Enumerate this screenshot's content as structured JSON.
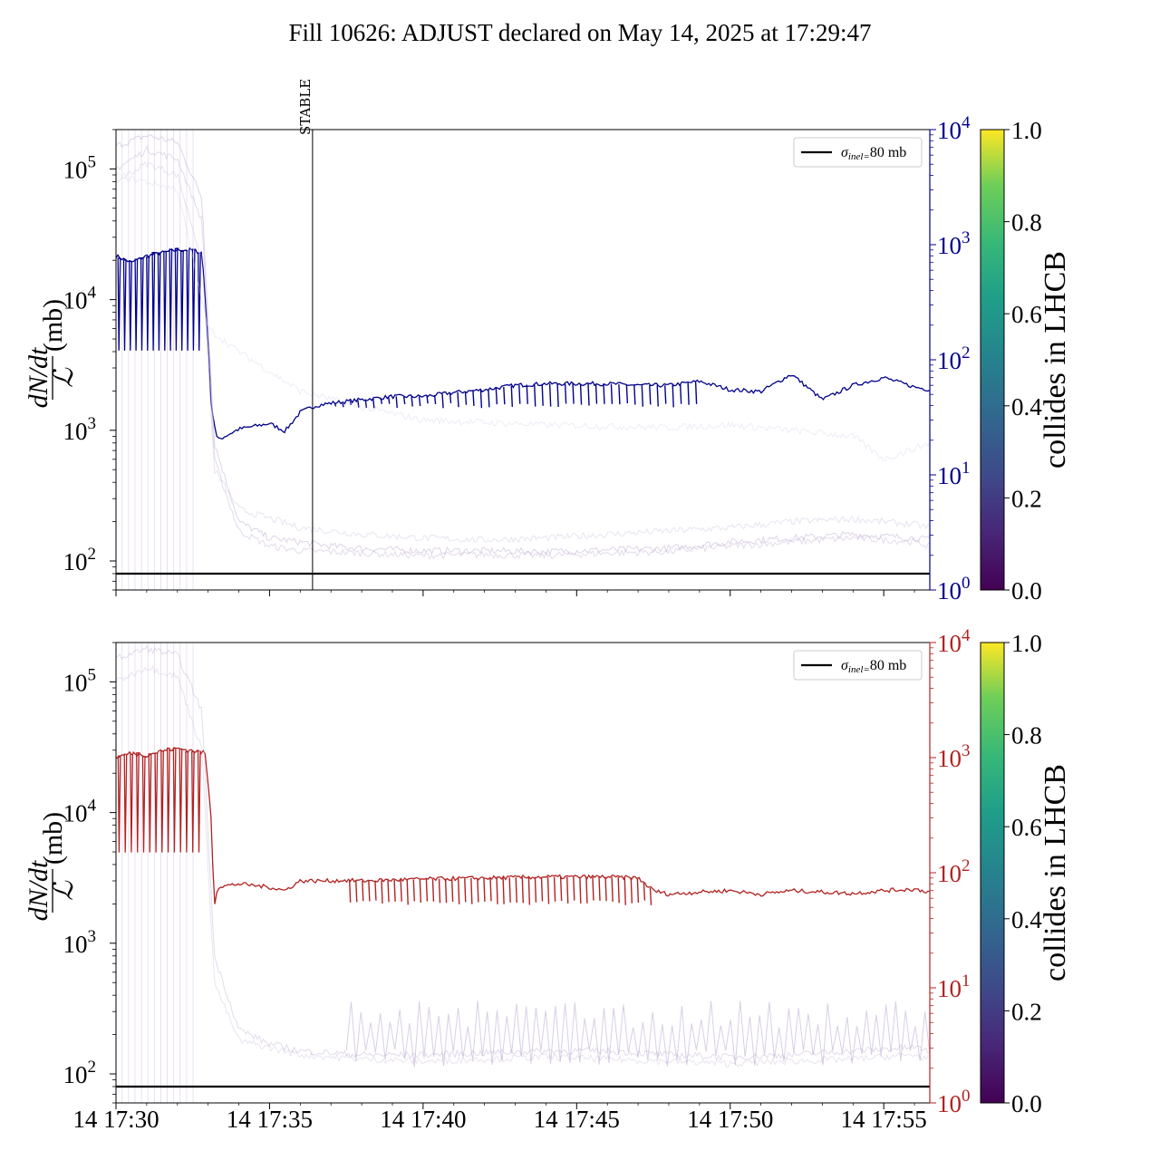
{
  "title": "Fill 10626: ADJUST declared on May 14, 2025 at 17:29:47",
  "colors": {
    "blue_series": "#00008b",
    "red_series": "#b22222",
    "faint_series": "#c8b8d8",
    "reference_line": "#000000"
  },
  "chart_data": [
    {
      "type": "line",
      "panel": "top",
      "title": "",
      "xlabel": "",
      "ylabel_num": "dN/dt",
      "ylabel_den": "ℒ",
      "ylabel_unit": "(mb)",
      "yscale": "log",
      "ylim": [
        60,
        200000
      ],
      "xlim_minutes": [
        0,
        26.5
      ],
      "x_start_label": "14 17:30",
      "x_ticks": [
        {
          "minute": 0,
          "label": "14 17:30"
        },
        {
          "minute": 5,
          "label": "14 17:35"
        },
        {
          "minute": 10,
          "label": "14 17:40"
        },
        {
          "minute": 15,
          "label": "14 17:45"
        },
        {
          "minute": 20,
          "label": "14 17:50"
        },
        {
          "minute": 25,
          "label": "14 17:55"
        }
      ],
      "y_ticks": [
        {
          "value": 100,
          "base": "10",
          "exp": "2"
        },
        {
          "value": 1000,
          "base": "10",
          "exp": "3"
        },
        {
          "value": 10000,
          "base": "10",
          "exp": "4"
        },
        {
          "value": 100000,
          "base": "10",
          "exp": "5"
        }
      ],
      "right_axis": {
        "scale": "log",
        "ylim": [
          1,
          10000
        ],
        "color": "#00008b",
        "ticks": [
          {
            "value": 1,
            "base": "10",
            "exp": "0"
          },
          {
            "value": 10,
            "base": "10",
            "exp": "1"
          },
          {
            "value": 100,
            "base": "10",
            "exp": "2"
          },
          {
            "value": 1000,
            "base": "10",
            "exp": "3"
          },
          {
            "value": 10000,
            "base": "10",
            "exp": "4"
          }
        ]
      },
      "reference_line": {
        "value": 80,
        "label": "σinel=80 mb"
      },
      "annotation": {
        "text": "STABLE",
        "minute": 6.4
      },
      "legend": "top-right",
      "series": [
        {
          "axis": "right",
          "color": "#00008b",
          "x": [
            0,
            0.5,
            1,
            1.5,
            2,
            2.5,
            2.8,
            3.0,
            3.1,
            3.3,
            4,
            5,
            5.5,
            6,
            6.5,
            7,
            8,
            9,
            10,
            11,
            12,
            13,
            14,
            15,
            16,
            17,
            18,
            19,
            20,
            21,
            22,
            23,
            24,
            25,
            26,
            26.5
          ],
          "y": [
            800,
            700,
            800,
            850,
            900,
            900,
            850,
            150,
            40,
            20,
            25,
            28,
            24,
            35,
            40,
            42,
            45,
            48,
            48,
            52,
            55,
            60,
            62,
            62,
            62,
            60,
            60,
            65,
            55,
            53,
            75,
            45,
            60,
            70,
            58,
            55
          ],
          "dips": {
            "from": 0,
            "to": 2.8,
            "low": 120,
            "count": 15
          }
        },
        {
          "axis": "right",
          "color": "#00008b",
          "dips": {
            "from": 7.0,
            "to": 19.0,
            "low": 40,
            "count": 48
          }
        },
        {
          "axis": "left",
          "color": "#c8b8d8",
          "opacity": 0.6,
          "x": [
            0,
            1,
            2,
            2.8,
            3.2,
            4,
            5,
            6,
            7,
            8,
            10,
            12,
            14,
            16,
            18,
            20,
            22,
            24,
            26,
            26.5
          ],
          "y": [
            150000,
            180000,
            160000,
            60000,
            800,
            200,
            150,
            140,
            130,
            125,
            120,
            120,
            118,
            122,
            125,
            140,
            150,
            160,
            150,
            145
          ]
        },
        {
          "axis": "left",
          "color": "#c8b8d8",
          "opacity": 0.5,
          "x": [
            0,
            1,
            2,
            2.8,
            3.2,
            4,
            5,
            6,
            8,
            10,
            12,
            14,
            16,
            18,
            20,
            22,
            24,
            26,
            26.5
          ],
          "y": [
            100000,
            140000,
            120000,
            40000,
            600,
            170,
            130,
            120,
            115,
            110,
            112,
            110,
            115,
            118,
            130,
            140,
            150,
            140,
            130
          ]
        },
        {
          "axis": "left",
          "color": "#c8b8d8",
          "opacity": 0.4,
          "x": [
            0,
            1,
            2,
            2.8,
            3.2,
            4,
            6,
            8,
            10,
            12,
            14,
            16,
            18,
            20,
            22,
            24,
            26,
            26.5
          ],
          "y": [
            80000,
            110000,
            90000,
            20000,
            500,
            250,
            180,
            160,
            150,
            145,
            150,
            160,
            170,
            180,
            200,
            210,
            190,
            180
          ]
        },
        {
          "axis": "left",
          "color": "#d8d0e8",
          "opacity": 0.4,
          "x": [
            0,
            2,
            3,
            4,
            6,
            8,
            10,
            14,
            18,
            20,
            22,
            24,
            25,
            26.5
          ],
          "y": [
            90000,
            70000,
            6000,
            4000,
            2000,
            1500,
            1200,
            1100,
            1050,
            1100,
            1000,
            900,
            600,
            800
          ]
        }
      ]
    },
    {
      "type": "line",
      "panel": "bottom",
      "title": "",
      "xlabel": "",
      "ylabel_num": "dN/dt",
      "ylabel_den": "ℒ",
      "ylabel_unit": "(mb)",
      "yscale": "log",
      "ylim": [
        60,
        200000
      ],
      "xlim_minutes": [
        0,
        26.5
      ],
      "x_ticks": [
        {
          "minute": 0,
          "label": "14 17:30"
        },
        {
          "minute": 5,
          "label": "14 17:35"
        },
        {
          "minute": 10,
          "label": "14 17:40"
        },
        {
          "minute": 15,
          "label": "14 17:45"
        },
        {
          "minute": 20,
          "label": "14 17:50"
        },
        {
          "minute": 25,
          "label": "14 17:55"
        }
      ],
      "y_ticks": [
        {
          "value": 100,
          "base": "10",
          "exp": "2"
        },
        {
          "value": 1000,
          "base": "10",
          "exp": "3"
        },
        {
          "value": 10000,
          "base": "10",
          "exp": "4"
        },
        {
          "value": 100000,
          "base": "10",
          "exp": "5"
        }
      ],
      "right_axis": {
        "scale": "log",
        "ylim": [
          1,
          10000
        ],
        "color": "#b22222",
        "ticks": [
          {
            "value": 1,
            "base": "10",
            "exp": "0"
          },
          {
            "value": 10,
            "base": "10",
            "exp": "1"
          },
          {
            "value": 100,
            "base": "10",
            "exp": "2"
          },
          {
            "value": 1000,
            "base": "10",
            "exp": "3"
          },
          {
            "value": 10000,
            "base": "10",
            "exp": "4"
          }
        ]
      },
      "reference_line": {
        "value": 80,
        "label": "σinel=80 mb"
      },
      "legend": "top-right",
      "series": [
        {
          "axis": "right",
          "color": "#b22222",
          "x": [
            0,
            0.5,
            1,
            1.5,
            2,
            2.5,
            2.9,
            3.1,
            3.2,
            3.3,
            4,
            5,
            5.5,
            6,
            7,
            7.5,
            8,
            10,
            12,
            14,
            16,
            17,
            17.5,
            18,
            19,
            20,
            21,
            22,
            23,
            24,
            25,
            26,
            26.5
          ],
          "y": [
            1000,
            1100,
            1050,
            1150,
            1200,
            1150,
            1100,
            300,
            50,
            75,
            80,
            75,
            70,
            85,
            85,
            86,
            85,
            88,
            90,
            92,
            92,
            90,
            70,
            65,
            68,
            70,
            65,
            70,
            68,
            66,
            70,
            72,
            68
          ],
          "dips": {
            "from": 0,
            "to": 2.8,
            "low": 150,
            "count": 14
          }
        },
        {
          "axis": "right",
          "color": "#b22222",
          "dips": {
            "from": 7.5,
            "to": 17.5,
            "low": 55,
            "count": 48
          }
        },
        {
          "axis": "left",
          "color": "#c8b8d8",
          "opacity": 0.5,
          "x": [
            0,
            1,
            2,
            2.8,
            3.2,
            4,
            5,
            6,
            8,
            10,
            12,
            14,
            16,
            18,
            20,
            22,
            24,
            26,
            26.5
          ],
          "y": [
            150000,
            180000,
            160000,
            60000,
            800,
            220,
            170,
            150,
            140,
            140,
            145,
            150,
            150,
            140,
            135,
            140,
            150,
            160,
            150
          ]
        },
        {
          "axis": "left",
          "color": "#c8b8d8",
          "opacity": 0.4,
          "x": [
            0,
            1,
            2,
            2.8,
            3.2,
            4,
            6,
            8,
            10,
            12,
            14,
            16,
            18,
            20,
            22,
            24,
            26,
            26.5
          ],
          "y": [
            100000,
            130000,
            110000,
            30000,
            500,
            180,
            140,
            130,
            125,
            130,
            135,
            130,
            125,
            120,
            125,
            130,
            140,
            130
          ]
        },
        {
          "axis": "left",
          "color": "#b8a8d0",
          "opacity": 0.55,
          "spiky": {
            "from": 7.5,
            "to": 26.5,
            "base": 140,
            "peak": 280,
            "count": 60
          }
        }
      ]
    }
  ],
  "colorbars": [
    {
      "label": "collides in LHCB",
      "ticks": [
        "0.0",
        "0.2",
        "0.4",
        "0.6",
        "0.8",
        "1.0"
      ]
    },
    {
      "label": "collides in LHCB",
      "ticks": [
        "0.0",
        "0.2",
        "0.4",
        "0.6",
        "0.8",
        "1.0"
      ]
    }
  ]
}
